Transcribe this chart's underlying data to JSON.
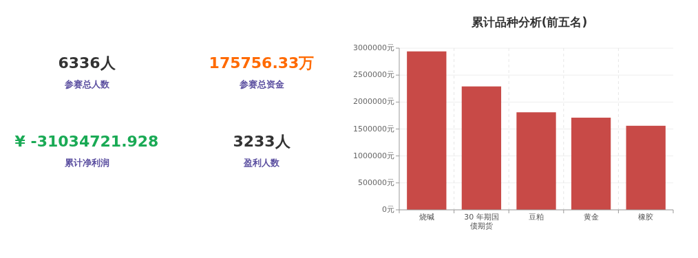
{
  "chart_data": [
    {
      "type": "other",
      "annotations": [
        "6336人",
        "参赛总人数",
        "175756.33万",
        "参赛总资金",
        "¥ -31034721.928",
        "累计净利润",
        "3233人",
        "盈利人数"
      ],
      "colors": [
        "#333333",
        "#ff6a00",
        "#1aaa55",
        "#333333"
      ]
    },
    {
      "type": "bar",
      "title": "累计品种分析(前五名)",
      "categories": [
        "烧碱",
        "30 年期国债期货",
        "豆粕",
        "黄金",
        "橡胶"
      ],
      "values": [
        2940000,
        2290000,
        1810000,
        1710000,
        1560000
      ],
      "color": "#c84a47",
      "ylim": [
        0,
        3000000
      ],
      "yticks": [
        {
          "value": 0,
          "label": "0元"
        },
        {
          "value": 500000,
          "label": "500000元"
        },
        {
          "value": 1000000,
          "label": "1000000元"
        },
        {
          "value": 1500000,
          "label": "1500000元"
        },
        {
          "value": 2000000,
          "label": "2000000元"
        },
        {
          "value": 2500000,
          "label": "2500000元"
        },
        {
          "value": 3000000,
          "label": "3000000元"
        }
      ],
      "grid": true
    }
  ]
}
